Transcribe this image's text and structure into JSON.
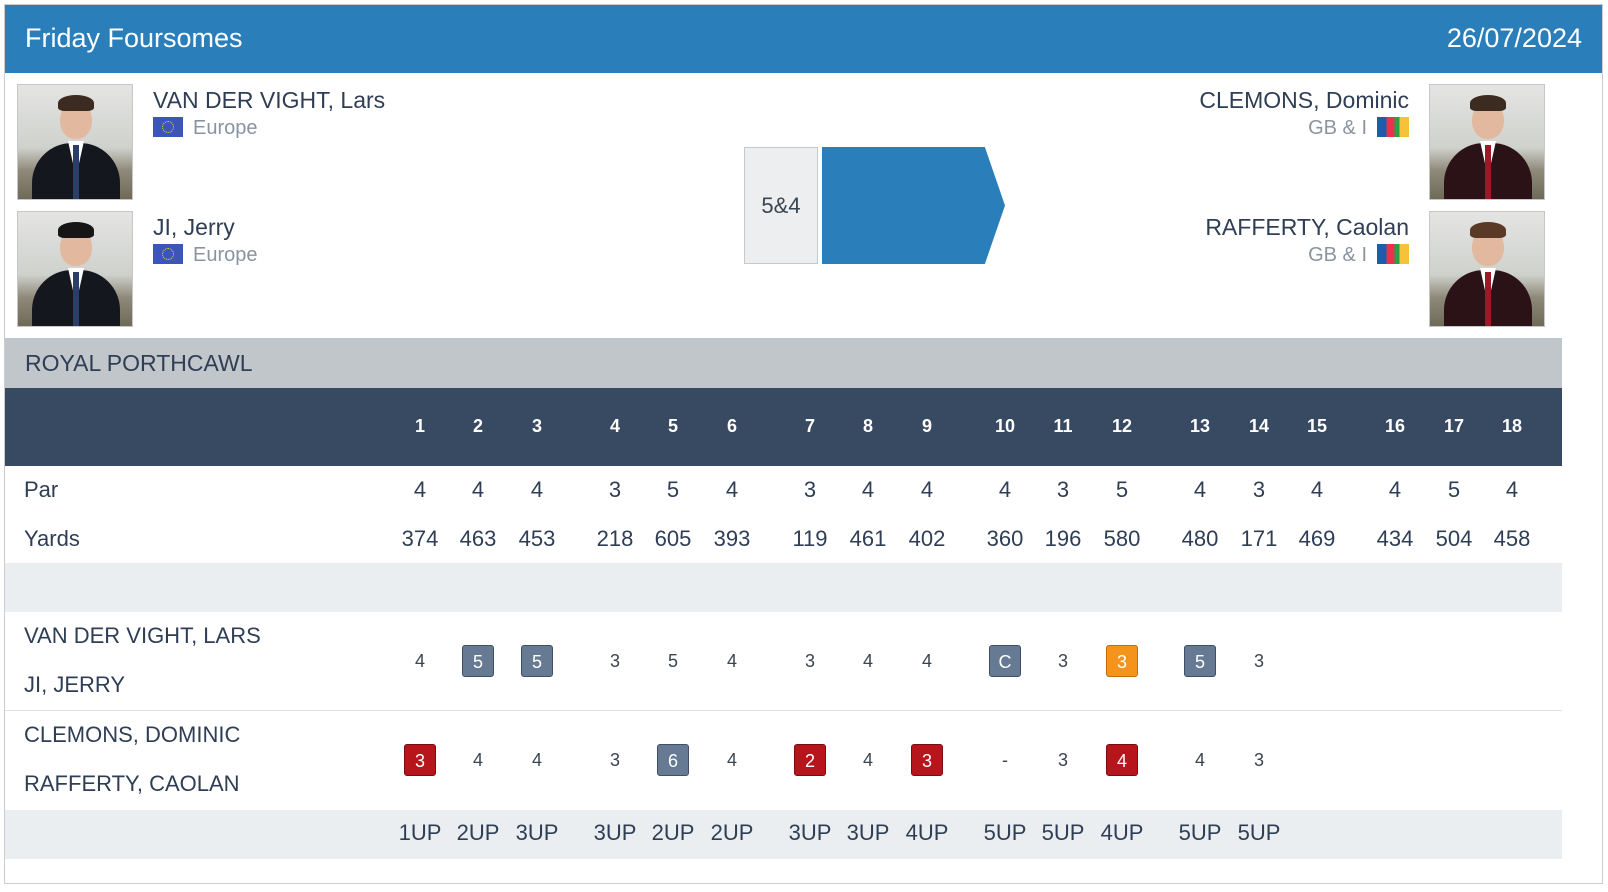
{
  "header": {
    "title": "Friday Foursomes",
    "date": "26/07/2024"
  },
  "left_team": {
    "players": [
      {
        "name": "VAN DER VIGHT, Lars",
        "team": "Europe"
      },
      {
        "name": "JI, Jerry",
        "team": "Europe"
      }
    ]
  },
  "right_team": {
    "players": [
      {
        "name": "CLEMONS, Dominic",
        "team": "GB & I"
      },
      {
        "name": "RAFFERTY, Caolan",
        "team": "GB & I"
      }
    ]
  },
  "result": {
    "score": "5&4",
    "winner_side": "right",
    "accent_color": "#2a7fba"
  },
  "course": "ROYAL PORTHCAWL",
  "holes": [
    "1",
    "2",
    "3",
    "4",
    "5",
    "6",
    "7",
    "8",
    "9",
    "10",
    "11",
    "12",
    "13",
    "14",
    "15",
    "16",
    "17",
    "18"
  ],
  "par_label": "Par",
  "par": [
    "4",
    "4",
    "4",
    "3",
    "5",
    "4",
    "3",
    "4",
    "4",
    "4",
    "3",
    "5",
    "4",
    "3",
    "4",
    "4",
    "5",
    "4"
  ],
  "yards_label": "Yards",
  "yards": [
    "374",
    "463",
    "453",
    "218",
    "605",
    "393",
    "119",
    "461",
    "402",
    "360",
    "196",
    "580",
    "480",
    "171",
    "469",
    "434",
    "504",
    "458"
  ],
  "pair1": {
    "players": [
      "VAN DER VIGHT, LARS",
      "JI, JERRY"
    ],
    "scores": [
      {
        "v": "4",
        "t": "par"
      },
      {
        "v": "5",
        "t": "bogey"
      },
      {
        "v": "5",
        "t": "bogey"
      },
      {
        "v": "3",
        "t": "par"
      },
      {
        "v": "5",
        "t": "par"
      },
      {
        "v": "4",
        "t": "par"
      },
      {
        "v": "3",
        "t": "par"
      },
      {
        "v": "4",
        "t": "par"
      },
      {
        "v": "4",
        "t": "par"
      },
      {
        "v": "C",
        "t": "conc"
      },
      {
        "v": "3",
        "t": "par"
      },
      {
        "v": "3",
        "t": "eagle"
      },
      {
        "v": "5",
        "t": "bogey"
      },
      {
        "v": "3",
        "t": "par"
      }
    ]
  },
  "pair2": {
    "players": [
      "CLEMONS, DOMINIC",
      "RAFFERTY, CAOLAN"
    ],
    "scores": [
      {
        "v": "3",
        "t": "birdie"
      },
      {
        "v": "4",
        "t": "par"
      },
      {
        "v": "4",
        "t": "par"
      },
      {
        "v": "3",
        "t": "par"
      },
      {
        "v": "6",
        "t": "bogey"
      },
      {
        "v": "4",
        "t": "par"
      },
      {
        "v": "2",
        "t": "birdie"
      },
      {
        "v": "4",
        "t": "par"
      },
      {
        "v": "3",
        "t": "birdie"
      },
      {
        "v": "-",
        "t": "par"
      },
      {
        "v": "3",
        "t": "par"
      },
      {
        "v": "4",
        "t": "birdie"
      },
      {
        "v": "4",
        "t": "par"
      },
      {
        "v": "3",
        "t": "par"
      }
    ]
  },
  "status": [
    "1UP",
    "2UP",
    "3UP",
    "3UP",
    "2UP",
    "2UP",
    "3UP",
    "3UP",
    "4UP",
    "5UP",
    "5UP",
    "4UP",
    "5UP",
    "5UP"
  ],
  "colors": {
    "header": "#2a7fba",
    "table_header": "#374a62",
    "birdie": "#b5151b",
    "eagle": "#f5941d",
    "bogey": "#677a93"
  }
}
